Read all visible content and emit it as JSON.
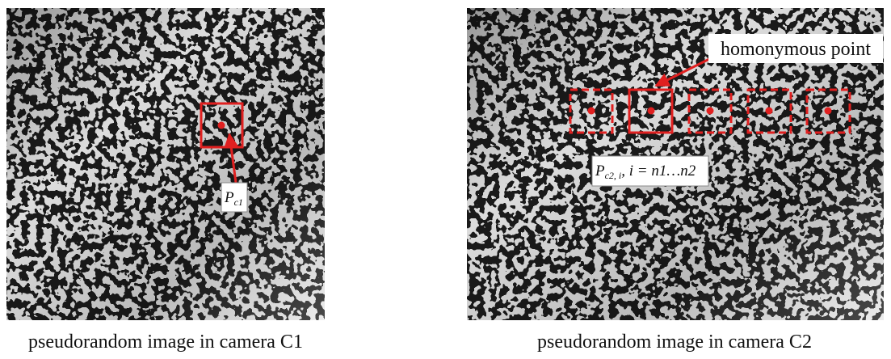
{
  "left": {
    "label": {
      "main": "P",
      "sub": "c1"
    },
    "caption": "pseudorandom  image in camera C1"
  },
  "right": {
    "callout": "homonymous point",
    "label": {
      "main": "P",
      "sub": "c2, i",
      "rest": ", i = n1…n2"
    },
    "caption": "pseudorandom  image in camera C2"
  }
}
